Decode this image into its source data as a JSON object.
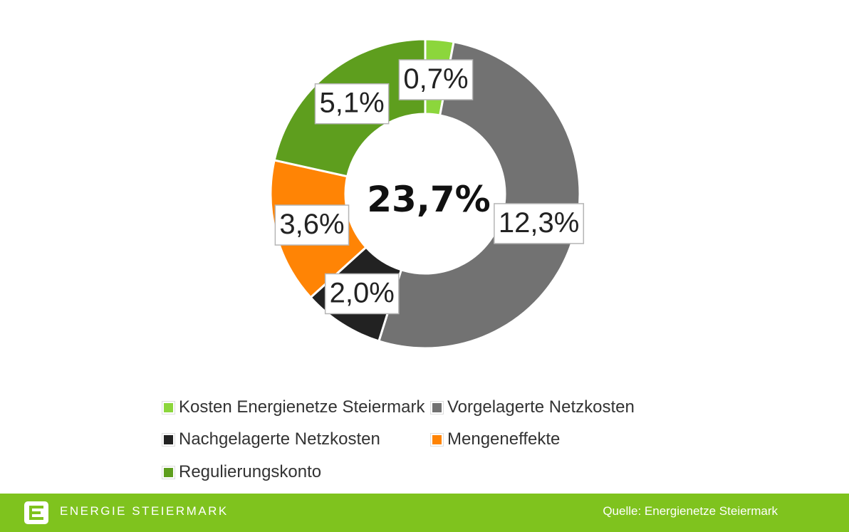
{
  "chart_data": {
    "type": "pie",
    "donut": true,
    "center_label": "23,7%",
    "slices": [
      {
        "name": "Kosten Energienetze Steiermark",
        "value": 0.7,
        "label": "0,7%",
        "color": "#8cd63c"
      },
      {
        "name": "Vorgelagerte Netzkosten",
        "value": 12.3,
        "label": "12,3%",
        "color": "#727272"
      },
      {
        "name": "Nachgelagerte Netzkosten",
        "value": 2.0,
        "label": "2,0%",
        "color": "#222222"
      },
      {
        "name": "Mengeneffekte",
        "value": 3.6,
        "label": "3,6%",
        "color": "#ff8405"
      },
      {
        "name": "Regulierungskonto",
        "value": 5.1,
        "label": "5,1%",
        "color": "#5e9e1e"
      }
    ],
    "legend_placement": "bottom"
  },
  "footer": {
    "brand": "ENERGIE STEIERMARK",
    "source": "Quelle: Energienetze Steiermark",
    "logo_icon": "energie-steiermark-logo-icon",
    "background_color": "#7fc31e"
  }
}
